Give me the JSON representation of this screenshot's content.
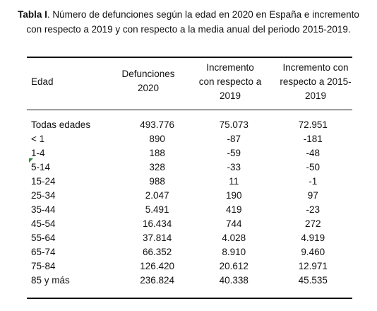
{
  "caption": {
    "label": "Tabla I",
    "text": ". Número de defunciones según la edad en 2020 en España e incremento con respecto a 2019 y con respecto a la media anual del periodo 2015-2019."
  },
  "headers": {
    "edad": "Edad",
    "defunciones_1": "Defunciones",
    "defunciones_2": "2020",
    "inc2019_1": "Incremento",
    "inc2019_2": "con respecto a",
    "inc2019_3": "2019",
    "incmedia_1": "Incremento con",
    "incmedia_2": "respecto a 2015-",
    "incmedia_3": "2019"
  },
  "rows": [
    {
      "edad": "Todas edades",
      "defunciones": "493.776",
      "inc2019": "75.073",
      "incmedia": "72.951"
    },
    {
      "edad": "< 1",
      "defunciones": "890",
      "inc2019": "-87",
      "incmedia": "-181"
    },
    {
      "edad": "1-4",
      "defunciones": "188",
      "inc2019": "-59",
      "incmedia": "-48"
    },
    {
      "edad": "5-14",
      "defunciones": "328",
      "inc2019": "-33",
      "incmedia": "-50"
    },
    {
      "edad": "15-24",
      "defunciones": "988",
      "inc2019": "11",
      "incmedia": "-1"
    },
    {
      "edad": "25-34",
      "defunciones": "2.047",
      "inc2019": "190",
      "incmedia": "97"
    },
    {
      "edad": "35-44",
      "defunciones": "5.491",
      "inc2019": "419",
      "incmedia": "-23"
    },
    {
      "edad": "45-54",
      "defunciones": "16.434",
      "inc2019": "744",
      "incmedia": "272"
    },
    {
      "edad": "55-64",
      "defunciones": "37.814",
      "inc2019": "4.028",
      "incmedia": "4.919"
    },
    {
      "edad": "65-74",
      "defunciones": "66.352",
      "inc2019": "8.910",
      "incmedia": "9.460"
    },
    {
      "edad": "75-84",
      "defunciones": "126.420",
      "inc2019": "20.612",
      "incmedia": "12.971"
    },
    {
      "edad": "85 y más",
      "defunciones": "236.824",
      "inc2019": "40.338",
      "incmedia": "45.535"
    }
  ],
  "colors": {
    "tick": "#2e8b3e"
  }
}
